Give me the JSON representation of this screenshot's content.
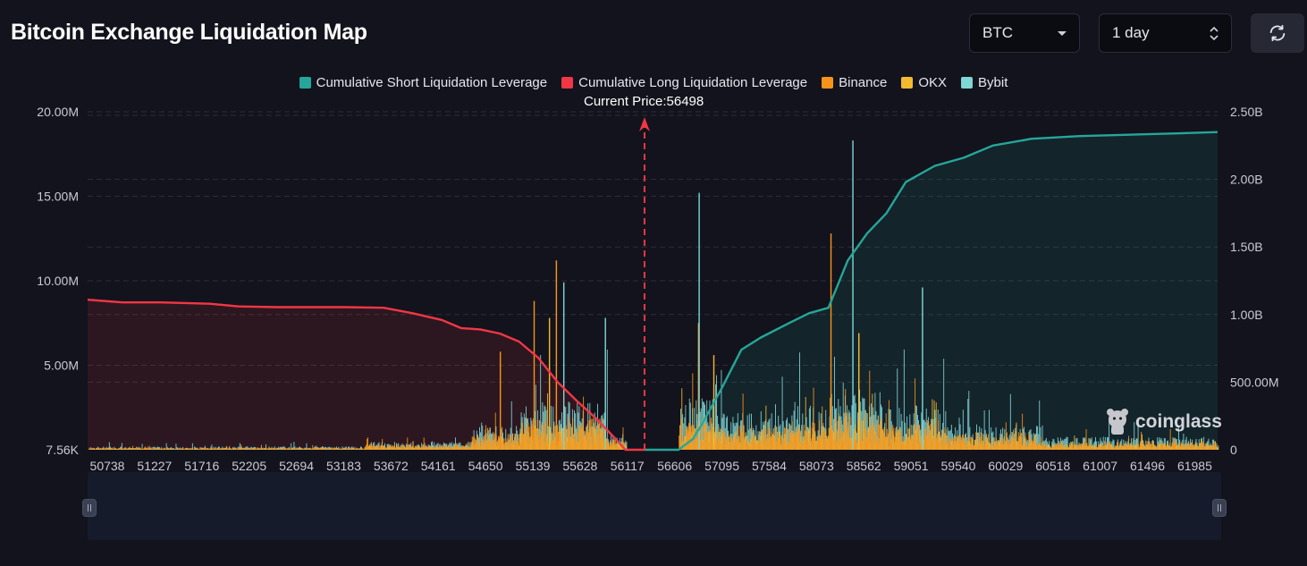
{
  "header": {
    "title": "Bitcoin Exchange Liquidation Map",
    "asset_select": "BTC",
    "interval_select": "1 day",
    "refresh_icon": "refresh-icon"
  },
  "legend": [
    {
      "label": "Cumulative Short Liquidation Leverage",
      "color": "#26a69a"
    },
    {
      "label": "Cumulative Long Liquidation Leverage",
      "color": "#f23645"
    },
    {
      "label": "Binance",
      "color": "#f7931a"
    },
    {
      "label": "OKX",
      "color": "#f3ba2f"
    },
    {
      "label": "Bybit",
      "color": "#7fd6d6"
    }
  ],
  "current_price_label": "Current Price:56498",
  "brand": "coinglass",
  "chart_data": {
    "type": "bar",
    "current_price": 56498,
    "x_range": [
      50738,
      62425
    ],
    "x_ticks": [
      "50738",
      "51227",
      "51716",
      "52205",
      "52694",
      "53183",
      "53672",
      "54161",
      "54650",
      "55139",
      "55628",
      "56117",
      "56606",
      "57095",
      "57584",
      "58073",
      "58562",
      "59051",
      "59540",
      "60029",
      "60518",
      "61007",
      "61496",
      "61985"
    ],
    "y_left": {
      "ticks": [
        "7.56K",
        "5.00M",
        "10.00M",
        "15.00M",
        "20.00M"
      ],
      "values": [
        7560,
        5000000,
        10000000,
        15000000,
        20000000
      ],
      "range": [
        0,
        20000000
      ]
    },
    "y_right": {
      "ticks": [
        "0",
        "500.00M",
        "1.00B",
        "1.50B",
        "2.00B",
        "2.50B"
      ],
      "values": [
        0,
        500000000,
        1000000000,
        1500000000,
        2000000000,
        2500000000
      ],
      "range": [
        0,
        2500000000
      ]
    },
    "grid": true,
    "legend_position": "top-center",
    "series": [
      {
        "name": "Cumulative Long Liquidation Leverage",
        "type": "area",
        "axis": "right",
        "x": [
          50738,
          51100,
          51500,
          52000,
          52300,
          52700,
          53000,
          53400,
          53800,
          54100,
          54400,
          54600,
          54800,
          55000,
          55200,
          55400,
          55600,
          55800,
          56000,
          56200,
          56300,
          56498
        ],
        "y": [
          1110000000,
          1090000000,
          1090000000,
          1080000000,
          1060000000,
          1055000000,
          1055000000,
          1055000000,
          1050000000,
          1010000000,
          960000000,
          900000000,
          890000000,
          860000000,
          800000000,
          680000000,
          500000000,
          360000000,
          230000000,
          80000000,
          0,
          0
        ]
      },
      {
        "name": "Cumulative Short Liquidation Leverage",
        "type": "area",
        "axis": "right",
        "x": [
          56498,
          56850,
          57000,
          57100,
          57300,
          57500,
          57700,
          58000,
          58200,
          58400,
          58600,
          58800,
          59000,
          59200,
          59500,
          59800,
          60100,
          60500,
          61000,
          61500,
          62000,
          62425
        ],
        "y": [
          0,
          0,
          80000000,
          200000000,
          460000000,
          740000000,
          830000000,
          940000000,
          1010000000,
          1050000000,
          1400000000,
          1600000000,
          1750000000,
          1980000000,
          2100000000,
          2160000000,
          2250000000,
          2300000000,
          2320000000,
          2330000000,
          2340000000,
          2350000000
        ]
      },
      {
        "name": "Binance",
        "type": "bar",
        "axis": "left",
        "peaks": [
          [
            55580,
            11200000
          ],
          [
            58420,
            12800000
          ],
          [
            55350,
            8800000
          ],
          [
            57050,
            7500000
          ],
          [
            55000,
            5800000
          ]
        ]
      },
      {
        "name": "OKX",
        "type": "bar",
        "axis": "left",
        "peaks": [
          [
            55500,
            7800000
          ],
          [
            58700,
            6900000
          ],
          [
            57200,
            5600000
          ]
        ]
      },
      {
        "name": "Bybit",
        "type": "bar",
        "axis": "left",
        "peaks": [
          [
            58630,
            18300000
          ],
          [
            57040,
            15200000
          ],
          [
            55640,
            9900000
          ],
          [
            59350,
            9600000
          ],
          [
            56070,
            7800000
          ]
        ]
      }
    ]
  }
}
